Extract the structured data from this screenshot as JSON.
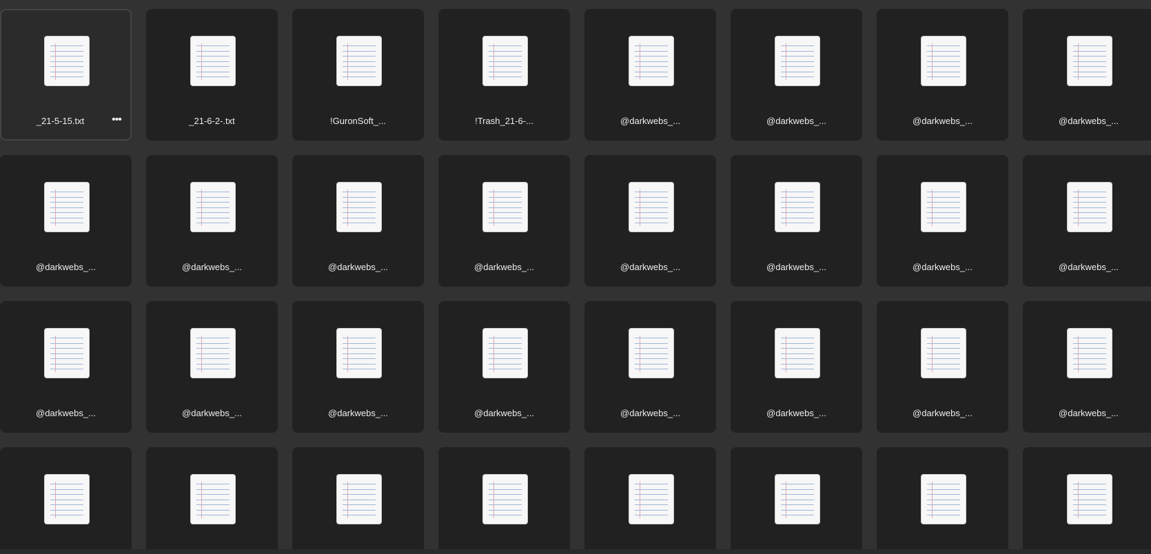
{
  "files": [
    {
      "name": "_21-5-15.txt",
      "selected": true,
      "menu_icon": "•••"
    },
    {
      "name": "_21-6-2-.txt"
    },
    {
      "name": "!GuronSoft_..."
    },
    {
      "name": "!Trash_21-6-..."
    },
    {
      "name": "@darkwebs_..."
    },
    {
      "name": "@darkwebs_..."
    },
    {
      "name": "@darkwebs_..."
    },
    {
      "name": "@darkwebs_..."
    },
    {
      "name": "@darkwebs_..."
    },
    {
      "name": "@darkwebs_..."
    },
    {
      "name": "@darkwebs_..."
    },
    {
      "name": "@darkwebs_..."
    },
    {
      "name": "@darkwebs_..."
    },
    {
      "name": "@darkwebs_..."
    },
    {
      "name": "@darkwebs_..."
    },
    {
      "name": "@darkwebs_..."
    },
    {
      "name": "@darkwebs_..."
    },
    {
      "name": "@darkwebs_..."
    },
    {
      "name": "@darkwebs_..."
    },
    {
      "name": "@darkwebs_..."
    },
    {
      "name": "@darkwebs_..."
    },
    {
      "name": "@darkwebs_..."
    },
    {
      "name": "@darkwebs_..."
    },
    {
      "name": "@darkwebs_..."
    },
    {
      "name": ""
    },
    {
      "name": ""
    },
    {
      "name": ""
    },
    {
      "name": ""
    },
    {
      "name": ""
    },
    {
      "name": ""
    },
    {
      "name": ""
    },
    {
      "name": ""
    }
  ],
  "icon": "text-file-icon",
  "colors": {
    "background": "#323232",
    "tile": "#212121",
    "text": "#eeeeee"
  }
}
